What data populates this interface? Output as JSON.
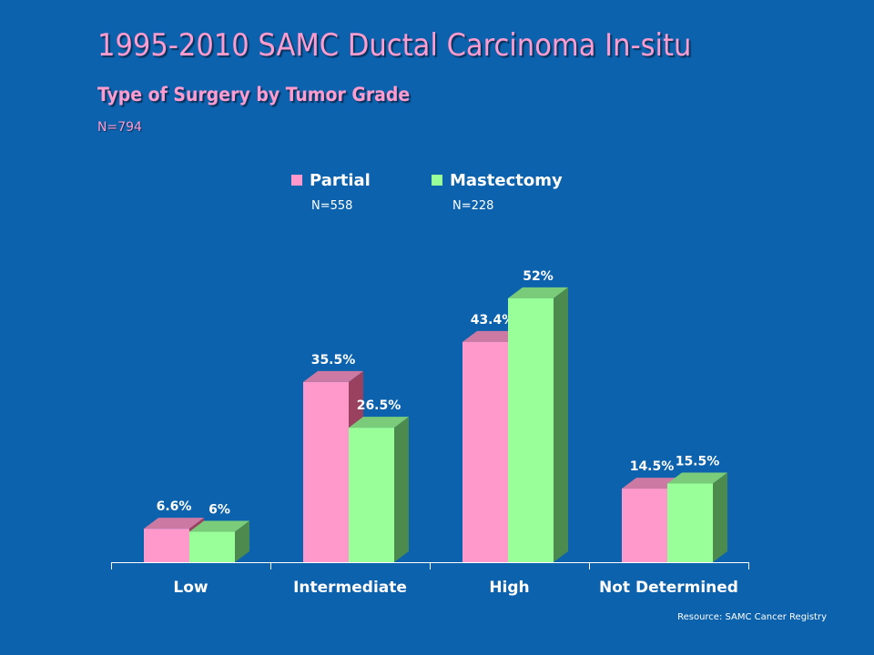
{
  "header": {
    "title": "1995-2010 SAMC Ductal Carcinoma In-situ",
    "subtitle": "Type of Surgery by Tumor Grade",
    "total_n": "N=794"
  },
  "legend": [
    {
      "label": "Partial",
      "n": "N=558",
      "color": "#ff99cc"
    },
    {
      "label": "Mastectomy",
      "n": "N=228",
      "color": "#99ff99"
    }
  ],
  "chart_data": {
    "type": "bar",
    "categories": [
      "Low",
      "Intermediate",
      "High",
      "Not Determined"
    ],
    "series": [
      {
        "name": "Partial",
        "values": [
          6.6,
          35.5,
          43.4,
          14.5
        ],
        "labels": [
          "6.6%",
          "35.5%",
          "43.4%",
          "14.5%"
        ]
      },
      {
        "name": "Mastectomy",
        "values": [
          6,
          26.5,
          52,
          15.5
        ],
        "labels": [
          "6%",
          "26.5%",
          "52%",
          "15.5%"
        ]
      }
    ],
    "ylim": [
      0,
      60
    ],
    "grid": false,
    "legend_position": "top",
    "colors": {
      "Partial": {
        "front": "#ff99cc",
        "top": "#cc7aa3",
        "side": "#99415f"
      },
      "Mastectomy": {
        "front": "#99ff99",
        "top": "#7acc7a",
        "side": "#4d8a4d"
      }
    }
  },
  "footer": {
    "source": "Resource: SAMC Cancer Registry"
  }
}
